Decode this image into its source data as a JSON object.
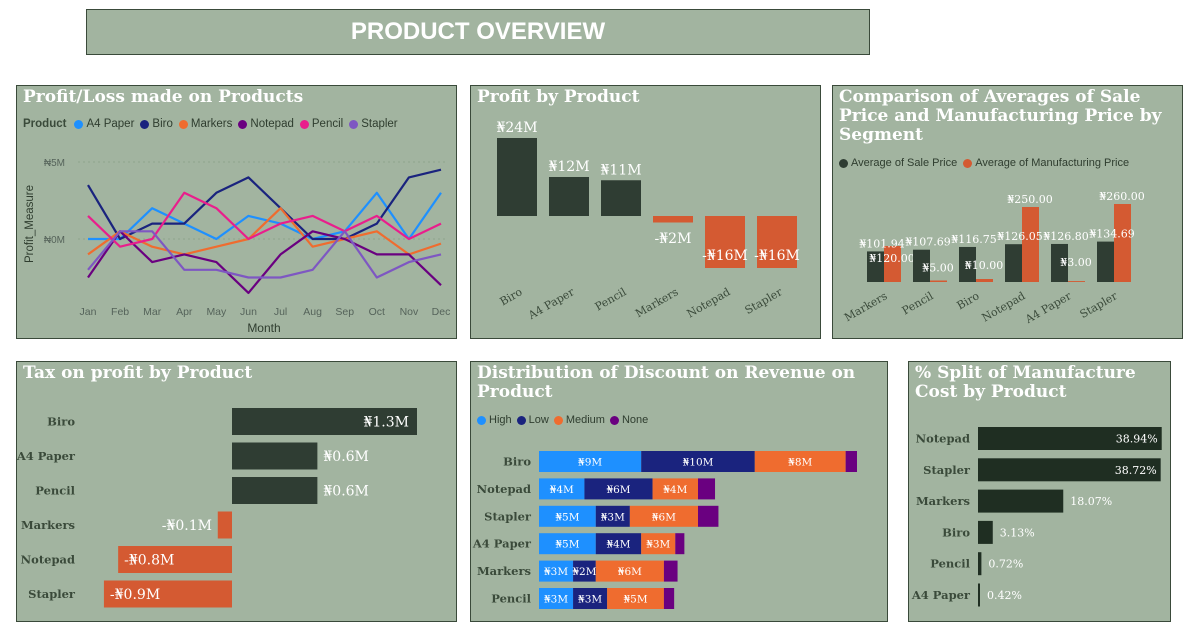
{
  "header": {
    "title": "PRODUCT OVERVIEW"
  },
  "colors": {
    "panel_bg": "#a2b4a0",
    "dark": "#2f3d33",
    "orange": "#d45a32",
    "a4paper": "#1e90ff",
    "biro": "#1a237e",
    "markers": "#ef6c2f",
    "notepad": "#6a0080",
    "pencil": "#e91e8c",
    "stapler": "#7e57c2"
  },
  "panels": {
    "profit_loss": {
      "title": "Profit/Loss made on Products",
      "legend_title": "Product",
      "ylabel": "Profit_Measure",
      "xlabel": "Month",
      "yticks": [
        "₦5M",
        "₦0M"
      ]
    },
    "profit_by_product": {
      "title": "Profit by Product"
    },
    "avg_compare": {
      "title": "Comparison of Averages of Sale Price and Manufacturing Price by Segment",
      "legend": [
        "Average of Sale Price",
        "Average of Manufacturing Price"
      ]
    },
    "tax": {
      "title": "Tax on profit by Product"
    },
    "discount": {
      "title": "Distribution of Discount on Revenue on Product",
      "legend": [
        "High",
        "Low",
        "Medium",
        "None"
      ]
    },
    "split": {
      "title": "% Split of Manufacture Cost by Product"
    }
  },
  "chart_data": [
    {
      "type": "line",
      "title": "Profit/Loss made on Products",
      "xlabel": "Month",
      "ylabel": "Profit_Measure",
      "x": [
        "Jan",
        "Feb",
        "Mar",
        "Apr",
        "May",
        "Jun",
        "Jul",
        "Aug",
        "Sep",
        "Oct",
        "Nov",
        "Dec"
      ],
      "ylim": [
        -4.5,
        6
      ],
      "series": [
        {
          "name": "A4 Paper",
          "values": [
            0,
            0,
            2,
            1,
            0,
            1.5,
            1,
            0,
            0.5,
            3,
            0,
            3
          ]
        },
        {
          "name": "Biro",
          "values": [
            3.5,
            0,
            1,
            1,
            3,
            4,
            2,
            0,
            0,
            1,
            4,
            4.5
          ]
        },
        {
          "name": "Markers",
          "values": [
            -1,
            0.5,
            -0.5,
            -1,
            -0.5,
            0,
            2,
            -0.5,
            0,
            0.5,
            -1,
            -0.3
          ]
        },
        {
          "name": "Notepad",
          "values": [
            -2.5,
            0.5,
            -1.5,
            -1,
            -1.5,
            -3.5,
            -1,
            0.5,
            0,
            -1,
            -1,
            -3
          ]
        },
        {
          "name": "Pencil",
          "values": [
            1.5,
            -0.5,
            0,
            3,
            2,
            0,
            1,
            1.5,
            0.5,
            1.5,
            0,
            1
          ]
        },
        {
          "name": "Stapler",
          "values": [
            -2,
            0.5,
            0.5,
            -2,
            -2,
            -2.5,
            -2.5,
            -2,
            0.5,
            -2.5,
            -1.5,
            -1
          ]
        }
      ]
    },
    {
      "type": "bar",
      "title": "Profit by Product",
      "categories": [
        "Biro",
        "A4 Paper",
        "Pencil",
        "Markers",
        "Notepad",
        "Stapler"
      ],
      "values": [
        24,
        12,
        11,
        -2,
        -16,
        -16
      ],
      "labels": [
        "₦24M",
        "₦12M",
        "₦11M",
        "-₦2M",
        "-₦16M",
        "-₦16M"
      ]
    },
    {
      "type": "bar",
      "title": "Comparison of Averages of Sale Price and Manufacturing Price by Segment",
      "categories": [
        "Markers",
        "Pencil",
        "Biro",
        "Notepad",
        "A4 Paper",
        "Stapler"
      ],
      "series": [
        {
          "name": "Average of Sale Price",
          "values": [
            101.94,
            107.69,
            116.75,
            126.05,
            126.8,
            134.69
          ],
          "labels": [
            "₦101.94",
            "₦107.69",
            "₦116.75",
            "₦126.05",
            "₦126.80",
            "₦134.69"
          ]
        },
        {
          "name": "Average of Manufacturing Price",
          "values": [
            120.0,
            5.0,
            10.0,
            250.0,
            3.0,
            260.0
          ],
          "labels": [
            "₦120.00",
            "₦5.00",
            "₦10.00",
            "₦250.00",
            "₦3.00",
            "₦260.00"
          ]
        }
      ]
    },
    {
      "type": "bar",
      "title": "Tax on profit by Product",
      "categories": [
        "Biro",
        "A4 Paper",
        "Pencil",
        "Markers",
        "Notepad",
        "Stapler"
      ],
      "values": [
        1.3,
        0.6,
        0.6,
        -0.1,
        -0.8,
        -0.9
      ],
      "labels": [
        "₦1.3M",
        "₦0.6M",
        "₦0.6M",
        "-₦0.1M",
        "-₦0.8M",
        "-₦0.9M"
      ]
    },
    {
      "type": "bar",
      "title": "Distribution of Discount on Revenue on Product",
      "categories": [
        "Biro",
        "Notepad",
        "Stapler",
        "A4 Paper",
        "Markers",
        "Pencil"
      ],
      "series": [
        {
          "name": "High",
          "values": [
            9,
            4,
            5,
            5,
            3,
            3
          ],
          "labels": [
            "₦9M",
            "₦4M",
            "₦5M",
            "₦5M",
            "₦3M",
            "₦3M"
          ]
        },
        {
          "name": "Low",
          "values": [
            10,
            6,
            3,
            4,
            2,
            3
          ],
          "labels": [
            "₦10M",
            "₦6M",
            "₦3M",
            "₦4M",
            "₦2M",
            "₦3M"
          ]
        },
        {
          "name": "Medium",
          "values": [
            8,
            4,
            6,
            3,
            6,
            5
          ],
          "labels": [
            "₦8M",
            "₦4M",
            "₦6M",
            "₦3M",
            "₦6M",
            "₦5M"
          ]
        },
        {
          "name": "None",
          "values": [
            1,
            1.5,
            1.8,
            0.8,
            1.2,
            0.9
          ],
          "labels": [
            "",
            "",
            "",
            "",
            "",
            ""
          ]
        }
      ]
    },
    {
      "type": "bar",
      "title": "% Split of Manufacture Cost by Product",
      "categories": [
        "Notepad",
        "Stapler",
        "Markers",
        "Biro",
        "Pencil",
        "A4 Paper"
      ],
      "values": [
        38.94,
        38.72,
        18.07,
        3.13,
        0.72,
        0.42
      ],
      "labels": [
        "38.94%",
        "38.72%",
        "18.07%",
        "3.13%",
        "0.72%",
        "0.42%"
      ]
    }
  ]
}
